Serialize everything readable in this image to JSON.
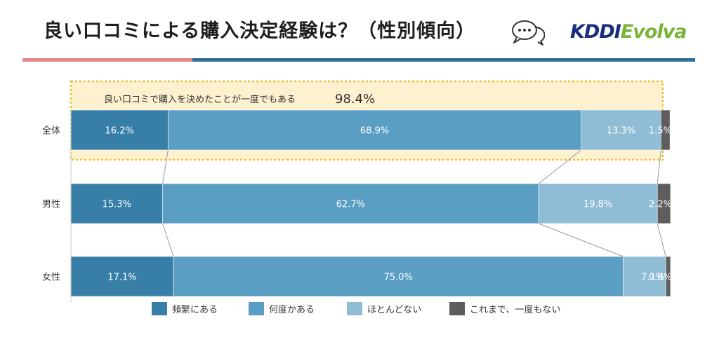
{
  "header": {
    "title": "良い口コミによる購入決定経験は？（性別傾向）",
    "logo_part1": "KDDI",
    "logo_part2": "Evolva",
    "chat_icon": "speech-bubbles-icon"
  },
  "annotation": {
    "text": "良い口コミで購入を決めたことが一度でもある",
    "value": "98.4%"
  },
  "colors": {
    "accent_left": "#e98787",
    "accent_right": "#2f6f9a",
    "highlight_fill": "#fdf1cf",
    "highlight_border": "#e8c33f"
  },
  "chart_data": {
    "type": "bar",
    "orientation": "horizontal",
    "stacked": true,
    "normalized": true,
    "categories": [
      "全体",
      "男性",
      "女性"
    ],
    "xlim": [
      0,
      100
    ],
    "unit": "%",
    "grid": false,
    "legend_position": "bottom",
    "series": [
      {
        "name": "頻繁にある",
        "color": "#387fa8",
        "values": [
          16.2,
          15.3,
          17.1
        ],
        "labels": [
          "16.2%",
          "15.3%",
          "17.1%"
        ]
      },
      {
        "name": "何度かある",
        "color": "#5b9ec3",
        "values": [
          68.9,
          62.7,
          75.0
        ],
        "labels": [
          "68.9%",
          "62.7%",
          "75.0%"
        ]
      },
      {
        "name": "ほとんどない",
        "color": "#8fbdd5",
        "values": [
          13.3,
          19.8,
          7.1
        ],
        "labels": [
          "13.3%",
          "19.8%",
          "7.1%"
        ]
      },
      {
        "name": "これまで、一度もない",
        "color": "#5d5d5d",
        "values": [
          1.5,
          2.2,
          0.8
        ],
        "labels": [
          "1.5%",
          "2.2%",
          "0.8%"
        ]
      }
    ]
  }
}
